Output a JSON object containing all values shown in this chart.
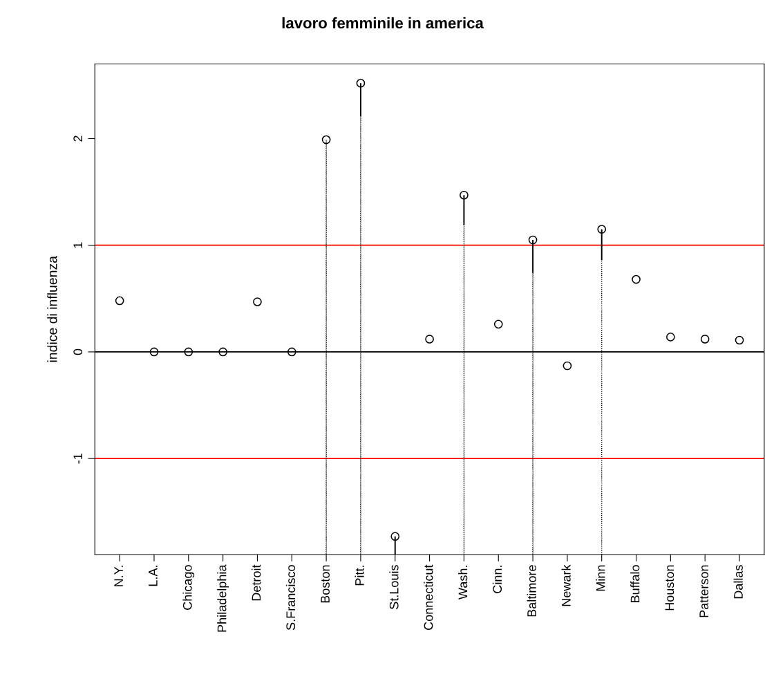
{
  "chart_data": {
    "type": "scatter",
    "title": "lavoro femminile in america",
    "ylabel": "indice di influenza",
    "categories": [
      "N.Y.",
      "L.A.",
      "Chicago",
      "Philadelphia",
      "Detroit",
      "S.Francisco",
      "Boston",
      "Pitt.",
      "St.Louis",
      "Connecticut",
      "Wash.",
      "Cinn.",
      "Baltimore",
      "Newark",
      "Minn",
      "Buffalo",
      "Houston",
      "Patterson",
      "Dallas"
    ],
    "series": [
      {
        "color": "#000000",
        "marker": "circle",
        "values": [
          0.48,
          0,
          0,
          0,
          0.47,
          0,
          1.99,
          2.52,
          -1.73,
          0.12,
          1.47,
          0.26,
          1.05,
          -0.13,
          1.15,
          0.68,
          0.14,
          0.12,
          0.11
        ],
        "errors": [
          null,
          null,
          null,
          null,
          null,
          null,
          null,
          [
            2.21,
            2.52
          ],
          [
            -1.9,
            -1.73
          ],
          null,
          [
            1.19,
            1.47
          ],
          null,
          [
            0.74,
            1.05
          ],
          null,
          [
            0.86,
            1.15
          ],
          null,
          null,
          null,
          null
        ]
      },
      {
        "type": "bar",
        "color": "#000000",
        "line_style": "dotted",
        "base": [
          null,
          null,
          null,
          null,
          null,
          null,
          -1.9,
          -1.9,
          null,
          null,
          -1.9,
          null,
          -1.9,
          null,
          -1.9,
          null,
          null,
          null,
          null
        ],
        "values": [
          null,
          null,
          null,
          null,
          null,
          null,
          3.89,
          4.11,
          null,
          null,
          3.09,
          null,
          2.64,
          null,
          2.76,
          null,
          null,
          null,
          null
        ]
      }
    ],
    "ylim": [
      -1.9,
      2.7
    ],
    "yticks": [
      -1,
      0,
      1,
      2
    ],
    "grid": false,
    "legend": false,
    "ref_lines": [
      {
        "axis": "y",
        "value": 1,
        "color": "#ff0000"
      },
      {
        "axis": "y",
        "value": -1,
        "color": "#ff0000"
      },
      {
        "axis": "y",
        "value": 0,
        "color": "#000000"
      }
    ]
  }
}
